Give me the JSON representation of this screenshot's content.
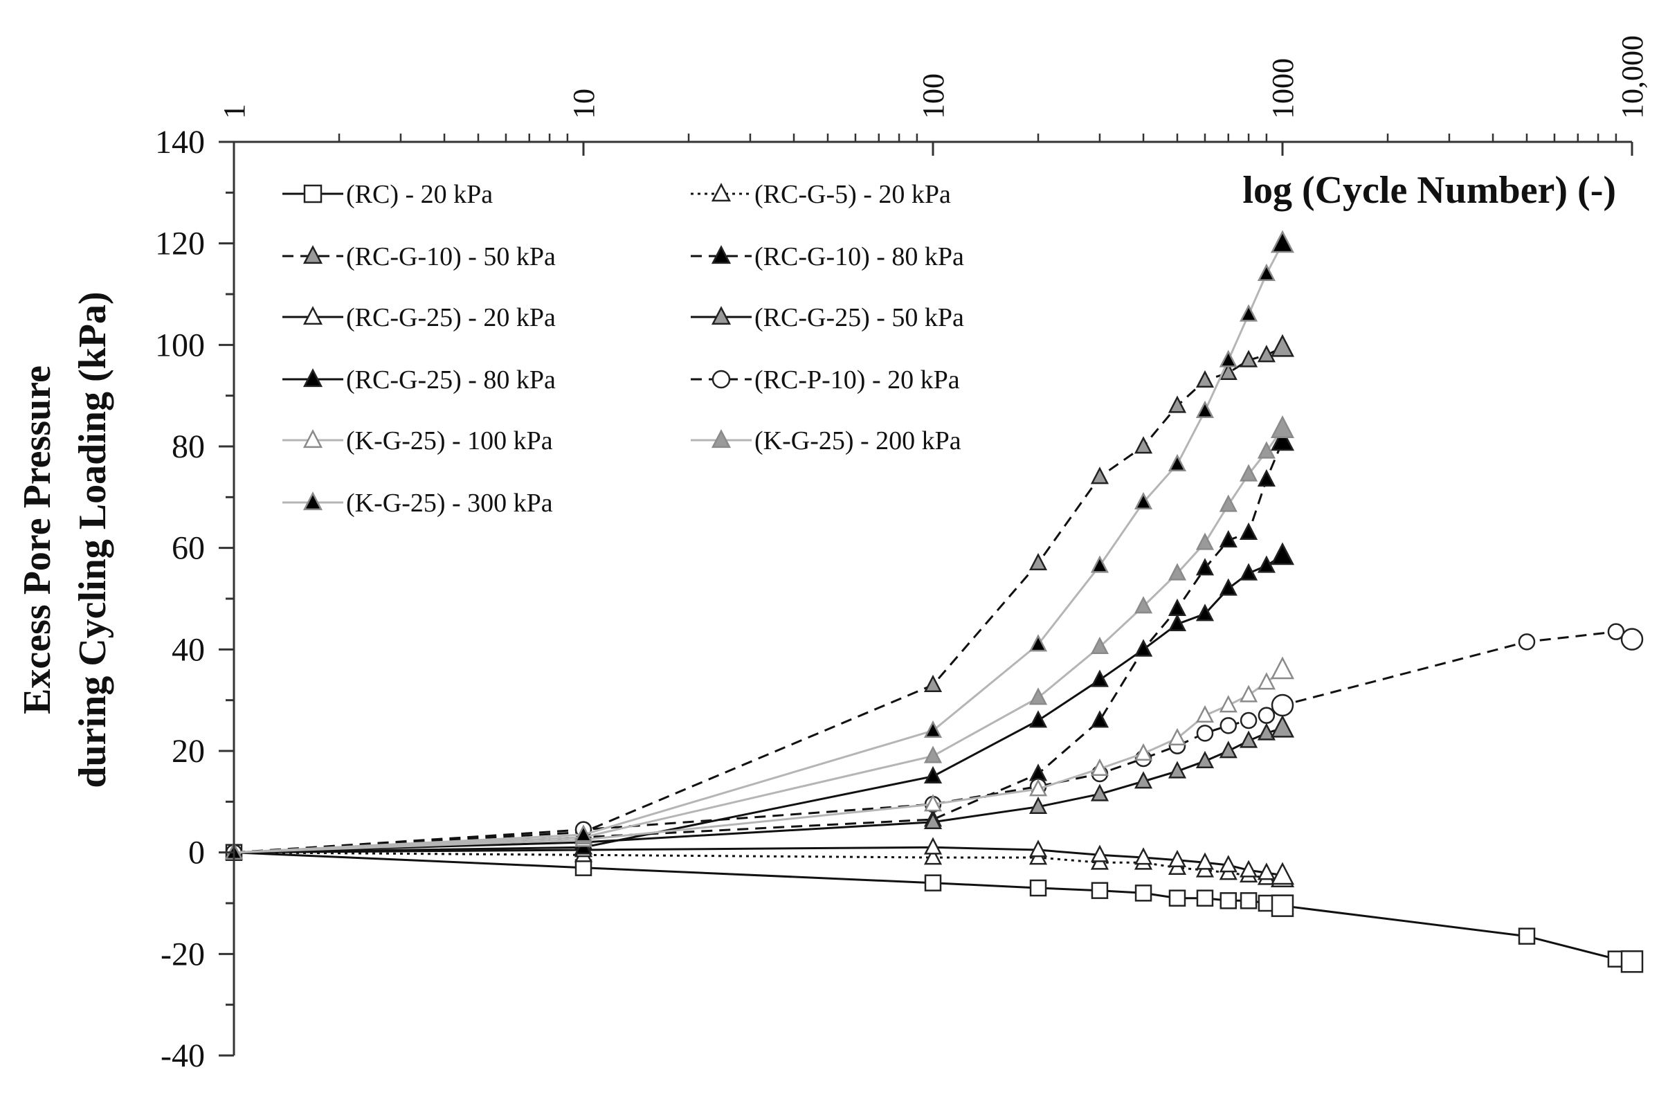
{
  "chart_data": {
    "type": "line",
    "title": "",
    "xlabel": "log (Cycle Number)  (-)",
    "ylabel": [
      "Excess Pore Pressure",
      "during Cycling Loading  (kPa)"
    ],
    "x_scale": "log",
    "xlim": [
      1,
      10000
    ],
    "ylim": [
      -40,
      140
    ],
    "x_ticks": [
      {
        "value": 1,
        "label": "1"
      },
      {
        "value": 10,
        "label": "10"
      },
      {
        "value": 100,
        "label": "100"
      },
      {
        "value": 1000,
        "label": "1000"
      },
      {
        "value": 10000,
        "label": "10,000"
      }
    ],
    "y_ticks": [
      {
        "value": 140,
        "label": "140"
      },
      {
        "value": 120,
        "label": "120"
      },
      {
        "value": 100,
        "label": "100"
      },
      {
        "value": 80,
        "label": "80"
      },
      {
        "value": 60,
        "label": "60"
      },
      {
        "value": 40,
        "label": "40"
      },
      {
        "value": 20,
        "label": "20"
      },
      {
        "value": 0,
        "label": "0"
      },
      {
        "value": -20,
        "label": "-20"
      },
      {
        "value": -40,
        "label": "-40"
      }
    ],
    "series": [
      {
        "name": "(RC) - 20 kPa",
        "line": "solid",
        "line_color": "#111111",
        "marker": "square",
        "marker_fill": "#ffffff",
        "x": [
          1,
          10,
          100,
          200,
          300,
          400,
          500,
          600,
          700,
          800,
          900,
          1000,
          5000,
          9000,
          10000
        ],
        "y": [
          0,
          -3,
          -6,
          -7,
          -7.5,
          -8,
          -9,
          -9,
          -9.5,
          -9.5,
          -10,
          -10.5,
          -16.5,
          -21,
          -21.5
        ]
      },
      {
        "name": "(RC-G-5) - 20 kPa",
        "line": "dotted",
        "line_color": "#111111",
        "marker": "triangle",
        "marker_fill": "#ffffff",
        "x": [
          1,
          10,
          100,
          200,
          300,
          400,
          500,
          600,
          700,
          800,
          900,
          1000
        ],
        "y": [
          0,
          -0.5,
          -1,
          -1,
          -2,
          -2,
          -3,
          -3.5,
          -4,
          -4.5,
          -5,
          -5
        ]
      },
      {
        "name": "(RC-G-10) - 50 kPa",
        "line": "dashed",
        "line_color": "#111111",
        "marker": "triangle",
        "marker_fill": "#9a9a9a",
        "x": [
          1,
          10,
          100,
          200,
          300,
          400,
          500,
          600,
          700,
          800,
          900,
          1000
        ],
        "y": [
          0,
          4,
          33,
          57,
          74,
          80,
          88,
          93,
          94.5,
          97,
          98,
          99.5
        ]
      },
      {
        "name": "(RC-G-10) - 80 kPa",
        "line": "dashed",
        "line_color": "#111111",
        "marker": "triangle",
        "marker_fill": "#000000",
        "x": [
          1,
          10,
          100,
          200,
          300,
          400,
          500,
          600,
          700,
          800,
          900,
          1000
        ],
        "y": [
          0,
          3,
          6.5,
          15.5,
          26,
          40,
          48,
          56,
          61.5,
          63,
          73.5,
          81
        ]
      },
      {
        "name": "(RC-G-25) - 20 kPa",
        "line": "solid",
        "line_color": "#111111",
        "marker": "triangle",
        "marker_fill": "#ffffff",
        "x": [
          1,
          10,
          100,
          200,
          300,
          400,
          500,
          600,
          700,
          800,
          900,
          1000
        ],
        "y": [
          0,
          0.5,
          1,
          0.5,
          -0.5,
          -1,
          -1.5,
          -2,
          -2.5,
          -3.5,
          -4,
          -4.5
        ]
      },
      {
        "name": "(RC-G-25) - 50 kPa",
        "line": "solid",
        "line_color": "#111111",
        "marker": "triangle",
        "marker_fill": "#9a9a9a",
        "x": [
          1,
          10,
          100,
          200,
          300,
          400,
          500,
          600,
          700,
          800,
          900,
          1000
        ],
        "y": [
          0,
          2,
          6,
          9,
          11.5,
          14,
          16,
          18,
          20,
          22,
          23.5,
          24.5
        ]
      },
      {
        "name": "(RC-G-25) - 80 kPa",
        "line": "solid",
        "line_color": "#111111",
        "marker": "triangle",
        "marker_fill": "#000000",
        "x": [
          1,
          10,
          100,
          200,
          300,
          400,
          500,
          600,
          700,
          800,
          900,
          1000
        ],
        "y": [
          0,
          1,
          15,
          26,
          34,
          40,
          45,
          47,
          52,
          55,
          56.5,
          58.5
        ]
      },
      {
        "name": "(RC-P-10) - 20 kPa",
        "line": "dashed",
        "line_color": "#111111",
        "marker": "circle",
        "marker_fill": "#ffffff",
        "x": [
          1,
          10,
          100,
          200,
          300,
          400,
          500,
          600,
          700,
          800,
          900,
          1000,
          5000,
          9000,
          10000
        ],
        "y": [
          0,
          4.5,
          9.5,
          13,
          15.5,
          18.5,
          21,
          23.5,
          25,
          26,
          27,
          29,
          41.5,
          43.5,
          42
        ]
      },
      {
        "name": "(K-G-25) - 100 kPa",
        "line": "solid",
        "line_color": "#b5b5b5",
        "marker": "triangle",
        "marker_fill": "#ffffff",
        "x": [
          1,
          10,
          100,
          200,
          300,
          400,
          500,
          600,
          700,
          800,
          900,
          1000
        ],
        "y": [
          0,
          2.5,
          9.5,
          12.5,
          16.5,
          19.5,
          22.5,
          27,
          29,
          31,
          33.5,
          36
        ]
      },
      {
        "name": "(K-G-25) - 200 kPa",
        "line": "solid",
        "line_color": "#b5b5b5",
        "marker": "triangle",
        "marker_fill": "#9a9a9a",
        "x": [
          1,
          10,
          100,
          200,
          300,
          400,
          500,
          600,
          700,
          800,
          900,
          1000
        ],
        "y": [
          0,
          3,
          19,
          30.5,
          40.5,
          48.5,
          55,
          61,
          68.5,
          74.5,
          79,
          83.5
        ]
      },
      {
        "name": "(K-G-25) - 300 kPa",
        "line": "solid",
        "line_color": "#b5b5b5",
        "marker": "triangle",
        "marker_fill": "#000000",
        "x": [
          1,
          10,
          100,
          200,
          300,
          400,
          500,
          600,
          700,
          800,
          900,
          1000
        ],
        "y": [
          0,
          3.5,
          24,
          41,
          56.5,
          69,
          76.5,
          87,
          97,
          106,
          114,
          120
        ]
      }
    ]
  }
}
